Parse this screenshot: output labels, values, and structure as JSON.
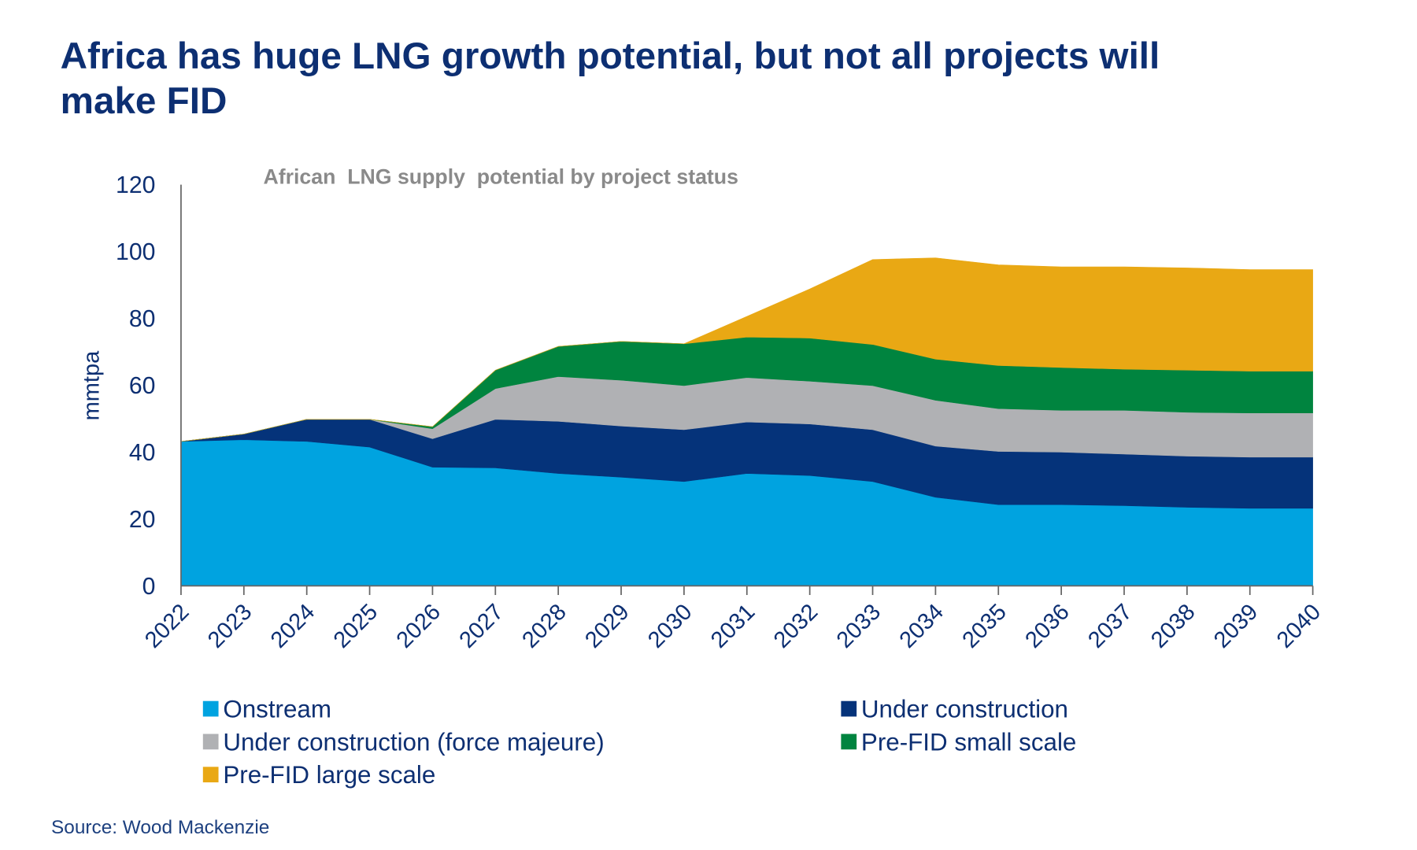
{
  "title_line1": "Africa has huge LNG growth potential, but not all projects will",
  "title_line2": "make FID",
  "source": "Source: Wood Mackenzie",
  "chart_data": {
    "type": "area",
    "stacked": true,
    "title": "African  LNG supply  potential by project status",
    "xlabel": "",
    "ylabel": "mmtpa",
    "ylim": [
      0,
      120
    ],
    "yticks": [
      0,
      20,
      40,
      60,
      80,
      100,
      120
    ],
    "grid": false,
    "legend_position": "bottom",
    "categories": [
      "2022",
      "2023",
      "2024",
      "2025",
      "2026",
      "2027",
      "2028",
      "2029",
      "2030",
      "2031",
      "2032",
      "2033",
      "2034",
      "2035",
      "2036",
      "2037",
      "2038",
      "2039",
      "2040"
    ],
    "series": [
      {
        "name": "Onstream",
        "color": "#00a3e0",
        "values": [
          43.2,
          43.7,
          43.2,
          41.5,
          35.5,
          35.3,
          33.6,
          32.5,
          31.2,
          33.6,
          33.0,
          31.2,
          26.5,
          24.3,
          24.3,
          24.0,
          23.5,
          23.2,
          23.2
        ]
      },
      {
        "name": "Under construction",
        "color": "#05337a",
        "values": [
          0,
          1.7,
          6.6,
          8.3,
          8.5,
          14.5,
          15.6,
          15.3,
          15.5,
          15.4,
          15.4,
          15.5,
          15.3,
          15.9,
          15.7,
          15.4,
          15.3,
          15.3,
          15.3
        ]
      },
      {
        "name": "Under construction (force majeure)",
        "color": "#b0b1b4",
        "values": [
          0,
          0,
          0,
          0,
          3.0,
          9.2,
          13.4,
          13.7,
          13.2,
          13.3,
          12.8,
          13.2,
          13.7,
          12.8,
          12.5,
          13.1,
          13.1,
          13.2,
          13.2
        ]
      },
      {
        "name": "Pre-FID small scale",
        "color": "#00843f",
        "values": [
          0,
          0,
          0,
          0,
          0.6,
          5.5,
          9.0,
          11.6,
          12.5,
          12.1,
          12.9,
          12.3,
          12.3,
          12.9,
          12.8,
          12.3,
          12.6,
          12.5,
          12.5
        ]
      },
      {
        "name": "Pre-FID large scale",
        "color": "#e9a814",
        "values": [
          0,
          0,
          0,
          0,
          0,
          0,
          0,
          0,
          0,
          6.2,
          14.7,
          25.4,
          30.3,
          30.1,
          30.1,
          30.6,
          30.6,
          30.4,
          30.4
        ]
      }
    ],
    "legend_order": [
      0,
      1,
      2,
      3,
      4
    ]
  }
}
